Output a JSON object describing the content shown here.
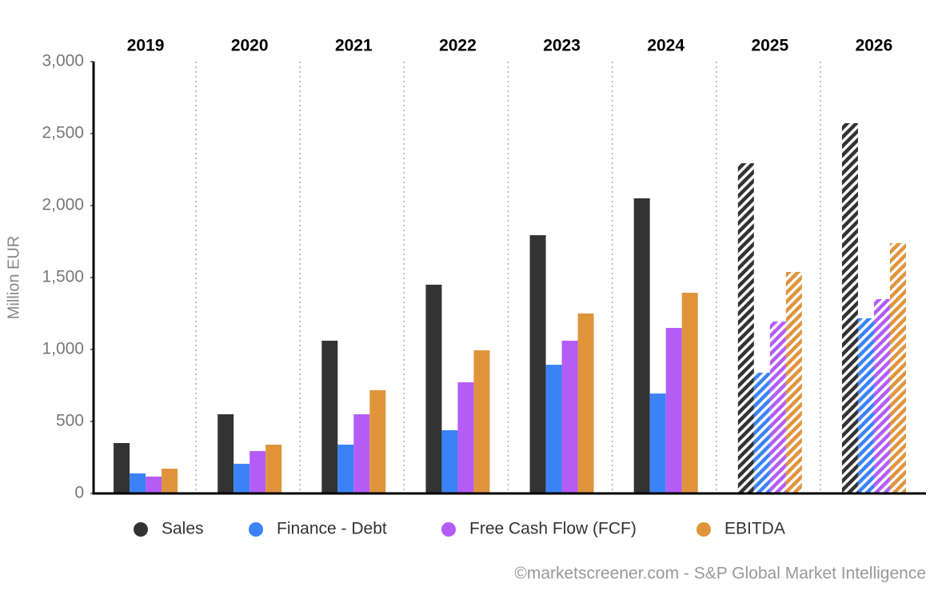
{
  "chart_data": {
    "type": "bar",
    "y_label": "Million EUR",
    "credit": "©marketscreener.com - S&P Global Market Intelligence",
    "categories": [
      "2019",
      "2020",
      "2021",
      "2022",
      "2023",
      "2024",
      "2025",
      "2026"
    ],
    "hatched": [
      false,
      false,
      false,
      false,
      false,
      false,
      true,
      true
    ],
    "series": [
      {
        "name": "Sales",
        "color": "#333333",
        "values": [
          350,
          550,
          1061,
          1450,
          1794,
          2050,
          2294,
          2572
        ]
      },
      {
        "name": "Finance - Debt",
        "color": "#3a83f7",
        "values": [
          139,
          206,
          339,
          439,
          894,
          694,
          839,
          1217
        ]
      },
      {
        "name": "Free Cash Flow (FCF)",
        "color": "#b45cf6",
        "values": [
          117,
          294,
          550,
          772,
          1061,
          1150,
          1194,
          1350
        ]
      },
      {
        "name": "EBITDA",
        "color": "#df943c",
        "values": [
          172,
          339,
          717,
          994,
          1250,
          1394,
          1539,
          1739
        ]
      }
    ],
    "ylim": [
      0,
      3000
    ],
    "yticks": [
      0,
      500,
      {
        "value": 1000,
        "label": "1,000"
      },
      {
        "value": 1500,
        "label": "1,500"
      },
      {
        "value": 2000,
        "label": "2,000"
      },
      {
        "value": 2500,
        "label": "2,500"
      },
      {
        "value": 3000,
        "label": "3,000"
      }
    ],
    "grid": false,
    "legend": "bottom"
  }
}
